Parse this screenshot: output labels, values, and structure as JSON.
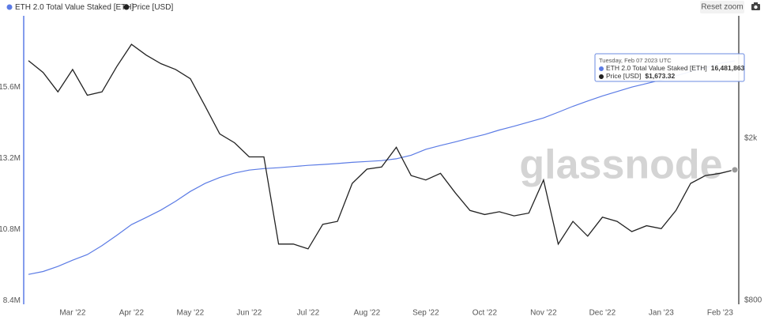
{
  "chart_data": {
    "type": "line",
    "reset_button": "Reset zoom",
    "watermark": "glassnode",
    "categories": [
      null,
      null,
      null,
      "Mar '22",
      null,
      null,
      null,
      "Apr '22",
      null,
      null,
      null,
      "May '22",
      null,
      null,
      null,
      "Jun '22",
      null,
      null,
      null,
      "Jul '22",
      null,
      null,
      null,
      "Aug '22",
      null,
      null,
      null,
      "Sep '22",
      null,
      null,
      null,
      "Oct '22",
      null,
      null,
      null,
      "Nov '22",
      null,
      null,
      null,
      "Dec '22",
      null,
      null,
      null,
      "Jan '23",
      null,
      null,
      null,
      "Feb '23",
      null
    ],
    "series": [
      {
        "name": "ETH 2.0 Total Value Staked [ETH]",
        "color": "#5b7be5",
        "values": [
          9280000,
          9380000,
          9550000,
          9760000,
          9950000,
          10250000,
          10600000,
          10960000,
          11200000,
          11450000,
          11750000,
          12080000,
          12350000,
          12550000,
          12700000,
          12800000,
          12850000,
          12880000,
          12920000,
          12960000,
          12990000,
          13020000,
          13060000,
          13090000,
          13120000,
          13180000,
          13300000,
          13500000,
          13630000,
          13750000,
          13880000,
          14000000,
          14150000,
          14280000,
          14420000,
          14560000,
          14750000,
          14950000,
          15130000,
          15300000,
          15450000,
          15600000,
          15720000,
          15840000,
          15980000,
          16120000,
          16250000,
          16400000,
          16481863
        ],
        "value_labels": [
          null,
          null,
          null,
          null,
          null,
          null,
          null,
          null,
          null,
          null,
          null,
          null,
          null,
          null,
          null,
          null,
          null,
          null,
          null,
          null,
          null,
          null,
          null,
          null,
          null,
          null,
          null,
          null,
          null,
          null,
          null,
          null,
          null,
          null,
          null,
          null,
          null,
          null,
          null,
          null,
          null,
          null,
          null,
          null,
          null,
          null,
          null,
          null,
          "16,481,863"
        ]
      },
      {
        "name": "Price [USD]",
        "color": "#222222",
        "axis": "y2",
        "values": [
          3100,
          2900,
          2600,
          2950,
          2550,
          2600,
          3000,
          3400,
          3200,
          3050,
          2950,
          2800,
          2400,
          2050,
          1950,
          1800,
          1800,
          1100,
          1100,
          1070,
          1230,
          1250,
          1550,
          1680,
          1700,
          1900,
          1620,
          1580,
          1640,
          1470,
          1330,
          1300,
          1320,
          1290,
          1310,
          1580,
          1100,
          1250,
          1150,
          1280,
          1250,
          1180,
          1220,
          1200,
          1330,
          1550,
          1620,
          1640,
          1673.32
        ],
        "value_labels": [
          null,
          null,
          null,
          null,
          null,
          null,
          null,
          null,
          null,
          null,
          null,
          null,
          null,
          null,
          null,
          null,
          null,
          null,
          null,
          null,
          null,
          null,
          null,
          null,
          null,
          null,
          null,
          null,
          null,
          null,
          null,
          null,
          null,
          null,
          null,
          null,
          null,
          null,
          null,
          null,
          null,
          null,
          null,
          null,
          null,
          null,
          null,
          null,
          "$1,673.32"
        ]
      }
    ],
    "tooltip_date": "Tuesday, Feb 07 2023 UTC",
    "ylim": [
      8300000,
      17950000
    ],
    "yticks": [
      {
        "value": 8400000,
        "label": "8.4M"
      },
      {
        "value": 10800000,
        "label": "10.8M"
      },
      {
        "value": 13200000,
        "label": "13.2M"
      },
      {
        "value": 15600000,
        "label": "15.6M"
      }
    ],
    "y2lim": [
      786,
      3960
    ],
    "y2_log": true,
    "y2ticks": [
      {
        "value": 800,
        "label": "$800"
      },
      {
        "value": 2000,
        "label": "$2k"
      }
    ],
    "grid": false
  }
}
